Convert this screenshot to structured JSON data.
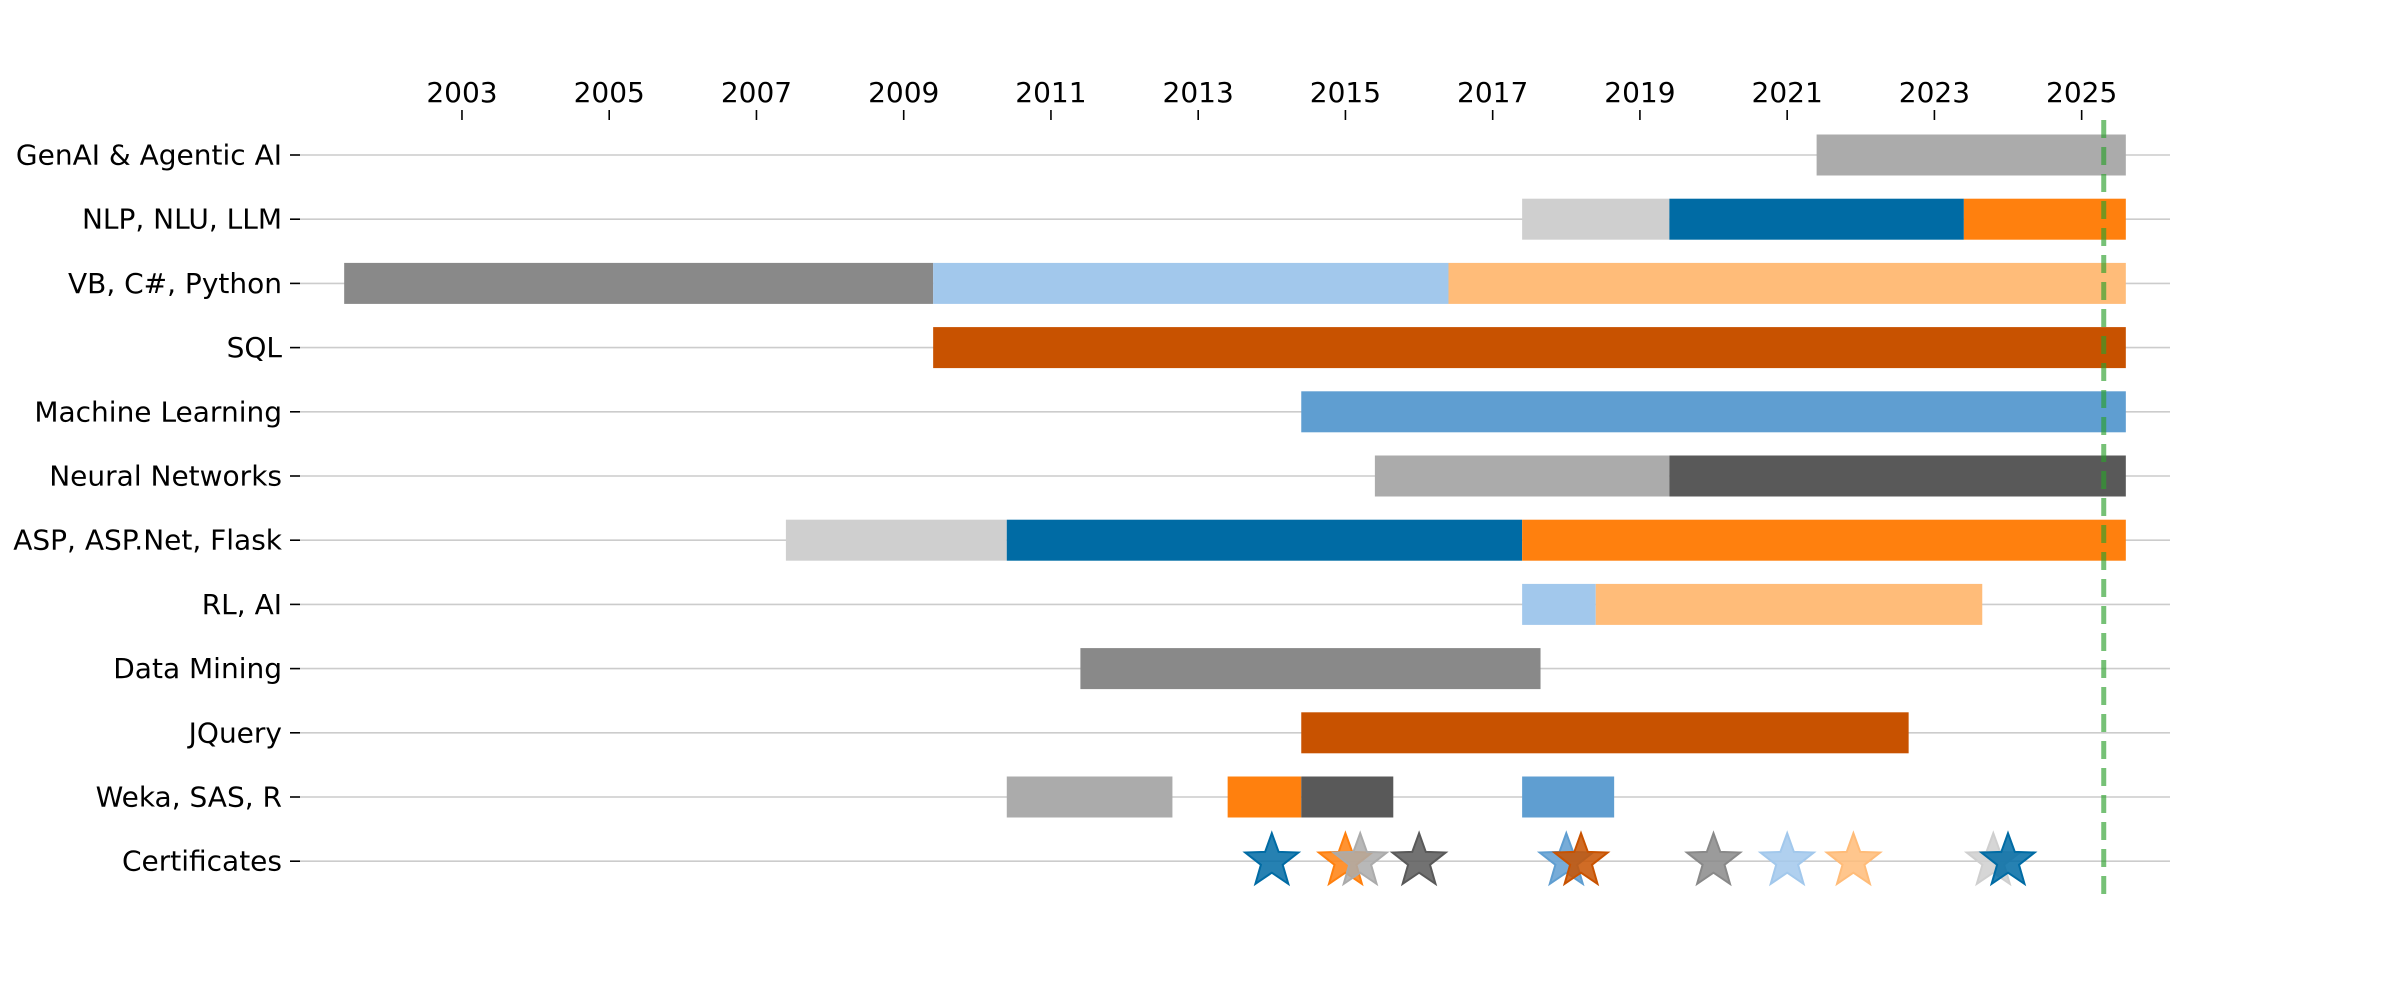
{
  "chart_data": {
    "type": "timeline",
    "title": "",
    "xlabel": "",
    "ylabel": "",
    "x_axis_position": "top",
    "xlim": [
      2000.8,
      2026.2
    ],
    "x_ticks": [
      2003,
      2005,
      2007,
      2009,
      2011,
      2013,
      2015,
      2017,
      2019,
      2021,
      2023,
      2025
    ],
    "grid": "horizontal",
    "current_date_marker": {
      "x": 2025.3,
      "color": "#2ca02c",
      "style": "dashed"
    },
    "categories": [
      "GenAI & Agentic AI",
      "NLP, NLU, LLM",
      "VB, C#, Python",
      "SQL",
      "Machine Learning",
      "Neural Networks",
      "ASP, ASP.Net, Flask",
      "RL, AI",
      "Data Mining",
      "JQuery",
      "Weka, SAS, R",
      "Certificates"
    ],
    "bars": [
      {
        "category": "GenAI & Agentic AI",
        "start": 2021.4,
        "end": 2025.6,
        "color": "#ababab"
      },
      {
        "category": "NLP, NLU, LLM",
        "start": 2017.4,
        "end": 2019.4,
        "color": "#cfcfcf"
      },
      {
        "category": "NLP, NLU, LLM",
        "start": 2019.4,
        "end": 2023.4,
        "color": "#006ba4"
      },
      {
        "category": "NLP, NLU, LLM",
        "start": 2023.4,
        "end": 2025.6,
        "color": "#ff800e"
      },
      {
        "category": "VB, C#, Python",
        "start": 2001.4,
        "end": 2009.4,
        "color": "#898989"
      },
      {
        "category": "VB, C#, Python",
        "start": 2009.4,
        "end": 2016.4,
        "color": "#a2c8ec"
      },
      {
        "category": "VB, C#, Python",
        "start": 2016.4,
        "end": 2025.6,
        "color": "#ffbc79"
      },
      {
        "category": "SQL",
        "start": 2009.4,
        "end": 2025.6,
        "color": "#c85200"
      },
      {
        "category": "Machine Learning",
        "start": 2014.4,
        "end": 2025.6,
        "color": "#5f9ed1"
      },
      {
        "category": "Neural Networks",
        "start": 2015.4,
        "end": 2019.4,
        "color": "#ababab"
      },
      {
        "category": "Neural Networks",
        "start": 2019.4,
        "end": 2025.6,
        "color": "#595959"
      },
      {
        "category": "ASP, ASP.Net, Flask",
        "start": 2007.4,
        "end": 2010.4,
        "color": "#cfcfcf"
      },
      {
        "category": "ASP, ASP.Net, Flask",
        "start": 2010.4,
        "end": 2017.4,
        "color": "#006ba4"
      },
      {
        "category": "ASP, ASP.Net, Flask",
        "start": 2017.4,
        "end": 2025.6,
        "color": "#ff800e"
      },
      {
        "category": "RL, AI",
        "start": 2017.4,
        "end": 2018.4,
        "color": "#a2c8ec"
      },
      {
        "category": "RL, AI",
        "start": 2018.4,
        "end": 2023.65,
        "color": "#ffbc79"
      },
      {
        "category": "Data Mining",
        "start": 2011.4,
        "end": 2017.65,
        "color": "#898989"
      },
      {
        "category": "JQuery",
        "start": 2014.4,
        "end": 2022.65,
        "color": "#c85200"
      },
      {
        "category": "Weka, SAS, R",
        "start": 2010.4,
        "end": 2012.65,
        "color": "#ababab"
      },
      {
        "category": "Weka, SAS, R",
        "start": 2013.4,
        "end": 2014.4,
        "color": "#ff800e"
      },
      {
        "category": "Weka, SAS, R",
        "start": 2014.4,
        "end": 2015.65,
        "color": "#595959"
      },
      {
        "category": "Weka, SAS, R",
        "start": 2017.4,
        "end": 2018.65,
        "color": "#5f9ed1"
      }
    ],
    "certificates": [
      {
        "x": 2014.0,
        "color": "#006ba4"
      },
      {
        "x": 2015.0,
        "color": "#ff800e"
      },
      {
        "x": 2015.2,
        "color": "#ababab"
      },
      {
        "x": 2016.0,
        "color": "#595959"
      },
      {
        "x": 2018.0,
        "color": "#5f9ed1"
      },
      {
        "x": 2018.2,
        "color": "#c85200"
      },
      {
        "x": 2020.0,
        "color": "#898989"
      },
      {
        "x": 2021.0,
        "color": "#a2c8ec"
      },
      {
        "x": 2021.9,
        "color": "#ffbc79"
      },
      {
        "x": 2023.8,
        "color": "#cfcfcf"
      },
      {
        "x": 2024.0,
        "color": "#006ba4"
      }
    ]
  }
}
